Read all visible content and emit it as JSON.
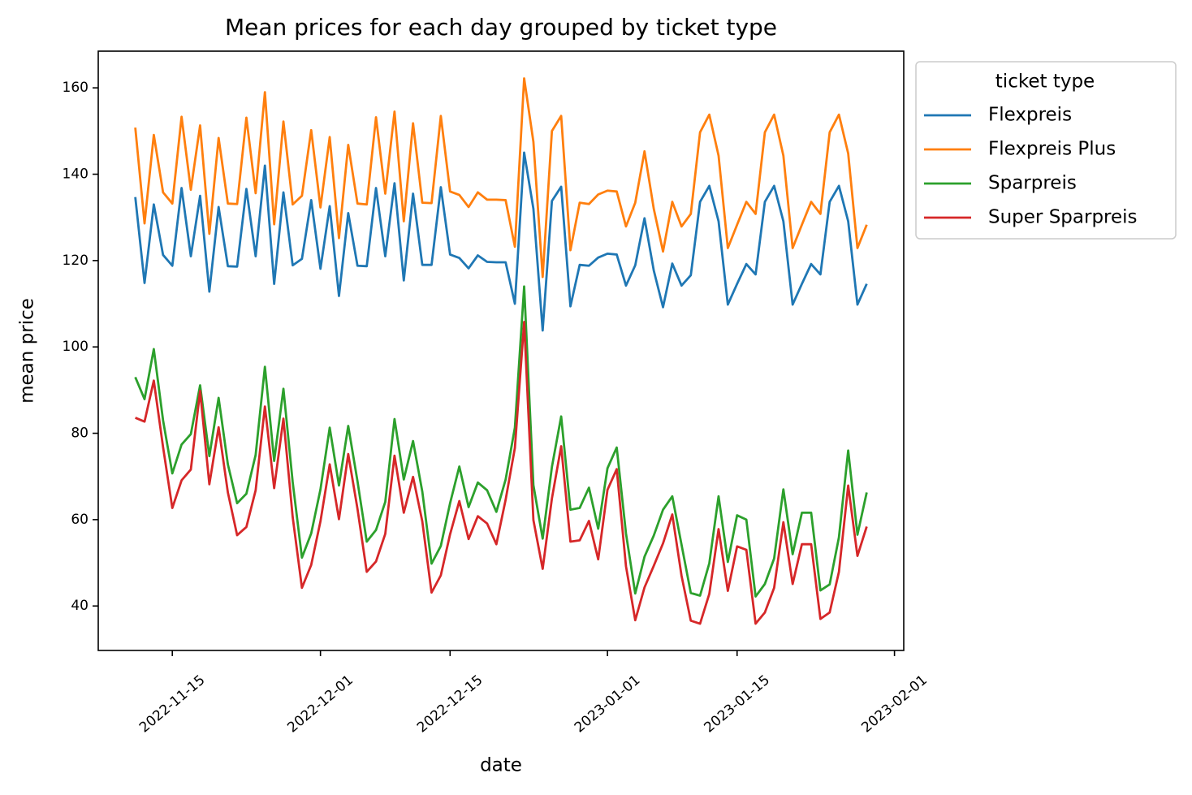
{
  "chart_data": {
    "type": "line",
    "title": "Mean prices for each day grouped by ticket type",
    "x_label": "date",
    "y_label": "mean price",
    "legend_title": "ticket type",
    "legend_position": "outside upper right",
    "x": [
      "2022-11-11",
      "2022-11-12",
      "2022-11-13",
      "2022-11-14",
      "2022-11-15",
      "2022-11-16",
      "2022-11-17",
      "2022-11-18",
      "2022-11-19",
      "2022-11-20",
      "2022-11-21",
      "2022-11-22",
      "2022-11-23",
      "2022-11-24",
      "2022-11-25",
      "2022-11-26",
      "2022-11-27",
      "2022-11-28",
      "2022-11-29",
      "2022-11-30",
      "2022-12-01",
      "2022-12-02",
      "2022-12-03",
      "2022-12-04",
      "2022-12-05",
      "2022-12-06",
      "2022-12-07",
      "2022-12-08",
      "2022-12-09",
      "2022-12-10",
      "2022-12-11",
      "2022-12-12",
      "2022-12-13",
      "2022-12-14",
      "2022-12-15",
      "2022-12-16",
      "2022-12-17",
      "2022-12-18",
      "2022-12-19",
      "2022-12-20",
      "2022-12-21",
      "2022-12-22",
      "2022-12-23",
      "2022-12-24",
      "2022-12-25",
      "2022-12-26",
      "2022-12-27",
      "2022-12-28",
      "2022-12-29",
      "2022-12-30",
      "2022-12-31",
      "2023-01-01",
      "2023-01-02",
      "2023-01-03",
      "2023-01-04",
      "2023-01-05",
      "2023-01-06",
      "2023-01-07",
      "2023-01-08",
      "2023-01-09",
      "2023-01-10",
      "2023-01-11",
      "2023-01-12",
      "2023-01-13",
      "2023-01-14",
      "2023-01-15",
      "2023-01-16",
      "2023-01-17",
      "2023-01-18",
      "2023-01-19",
      "2023-01-20",
      "2023-01-21",
      "2023-01-22",
      "2023-01-23",
      "2023-01-24",
      "2023-01-25",
      "2023-01-26",
      "2023-01-27",
      "2023-01-28",
      "2023-01-29"
    ],
    "series": [
      {
        "name": "Flexpreis",
        "color": "#1f77b4",
        "values": [
          134.7,
          114.8,
          133,
          121.3,
          118.8,
          136.8,
          121,
          135,
          112.8,
          132.4,
          118.7,
          118.6,
          136.6,
          121,
          142,
          114.6,
          135.8,
          118.9,
          120.4,
          134,
          118.1,
          132.6,
          111.8,
          131,
          118.8,
          118.7,
          136.8,
          121,
          137.9,
          115.4,
          135.5,
          119,
          119,
          137,
          121.4,
          120.6,
          118.2,
          121.2,
          119.7,
          119.6,
          119.6,
          110,
          145,
          132,
          103.8,
          133.8,
          137.1,
          109.4,
          119,
          118.8,
          120.7,
          121.6,
          121.4,
          114.2,
          118.9,
          129.8,
          117.7,
          109.2,
          119.3,
          114.2,
          116.6,
          133.6,
          137.3,
          129.1,
          109.8,
          114.6,
          119.2,
          116.8,
          133.6,
          137.3,
          129.1,
          109.8,
          114.6,
          119.2,
          116.8,
          133.6,
          137.3,
          129.1,
          109.8,
          114.6
        ]
      },
      {
        "name": "Flexpreis Plus",
        "color": "#ff7f0e",
        "values": [
          150.8,
          128.6,
          149.1,
          135.8,
          133.2,
          153.3,
          136.4,
          151.3,
          126.2,
          148.4,
          133.2,
          133.1,
          153.1,
          135.6,
          159,
          128.4,
          152.2,
          133,
          135,
          150.2,
          132.3,
          148.6,
          125.2,
          146.8,
          133.2,
          133,
          153.2,
          135.5,
          154.5,
          129.1,
          151.8,
          133.4,
          133.3,
          153.5,
          136,
          135.2,
          132.4,
          135.8,
          134.1,
          134.1,
          134,
          123.2,
          162.2,
          147.5,
          116.2,
          150,
          153.5,
          122.4,
          133.4,
          133.1,
          135.3,
          136.2,
          136,
          127.9,
          133.4,
          145.3,
          132,
          122.1,
          133.6,
          127.9,
          130.8,
          149.7,
          153.8,
          144.3,
          122.9,
          128.3,
          133.6,
          130.8,
          149.7,
          153.8,
          144.3,
          122.9,
          128.3,
          133.6,
          130.8,
          149.7,
          153.8,
          144.8,
          122.9,
          128.3
        ]
      },
      {
        "name": "Sparpreis",
        "color": "#2ca02c",
        "values": [
          93,
          87.9,
          99.5,
          83,
          70.7,
          77.4,
          79.8,
          91.1,
          74.7,
          88.2,
          72.8,
          63.8,
          66,
          75,
          95.4,
          73.6,
          90.3,
          68.7,
          51.2,
          56.8,
          67,
          81.3,
          67.9,
          81.7,
          68.9,
          54.9,
          57.6,
          64.1,
          83.3,
          69.3,
          78.2,
          66.5,
          49.8,
          53.9,
          63.8,
          72.3,
          62.9,
          68.6,
          66.8,
          61.8,
          69.3,
          81.3,
          114,
          68,
          55.6,
          72.2,
          83.9,
          62.3,
          62.7,
          67.4,
          57.9,
          71.9,
          76.7,
          56.8,
          42.9,
          51.4,
          56.3,
          62.3,
          65.4,
          54.2,
          43,
          42.4,
          49.9,
          65.4,
          50.2,
          61,
          60,
          42.2,
          45.1,
          51,
          67,
          52,
          61.6,
          61.6,
          43.6,
          45,
          55.9,
          76,
          56.5,
          66.3
        ]
      },
      {
        "name": "Super Sparpreis",
        "color": "#d62728",
        "values": [
          83.6,
          82.7,
          92.2,
          76.8,
          62.7,
          69.1,
          71.6,
          89.8,
          68.2,
          81.4,
          66.3,
          56.4,
          58.3,
          66.8,
          86.2,
          67.3,
          83.4,
          60.6,
          44.2,
          49.5,
          59.6,
          72.8,
          60.1,
          75.2,
          62.5,
          47.9,
          50.3,
          56.7,
          74.8,
          61.6,
          69.9,
          59.6,
          43.1,
          47.1,
          56.6,
          64.3,
          55.5,
          60.8,
          59.1,
          54.3,
          64.6,
          76.6,
          105.8,
          59.9,
          48.6,
          64.9,
          77,
          54.9,
          55.2,
          59.7,
          50.8,
          66.9,
          71.7,
          49.2,
          36.7,
          44.3,
          49.3,
          54.5,
          61.2,
          47,
          36.6,
          35.9,
          42.8,
          57.8,
          43.5,
          53.8,
          53,
          35.9,
          38.5,
          44.2,
          59.4,
          45.1,
          54.3,
          54.3,
          37,
          38.5,
          47.9,
          67.9,
          51.6,
          58.4
        ]
      }
    ],
    "xlim": [
      "2022-11-07",
      "2023-02-02"
    ],
    "xticks": [
      "2022-11-15",
      "2022-12-01",
      "2022-12-15",
      "2023-01-01",
      "2023-01-15",
      "2023-02-01"
    ],
    "ylim": [
      29.7,
      168.5
    ],
    "yticks": [
      40,
      60,
      80,
      100,
      120,
      140,
      160
    ],
    "grid": false
  }
}
